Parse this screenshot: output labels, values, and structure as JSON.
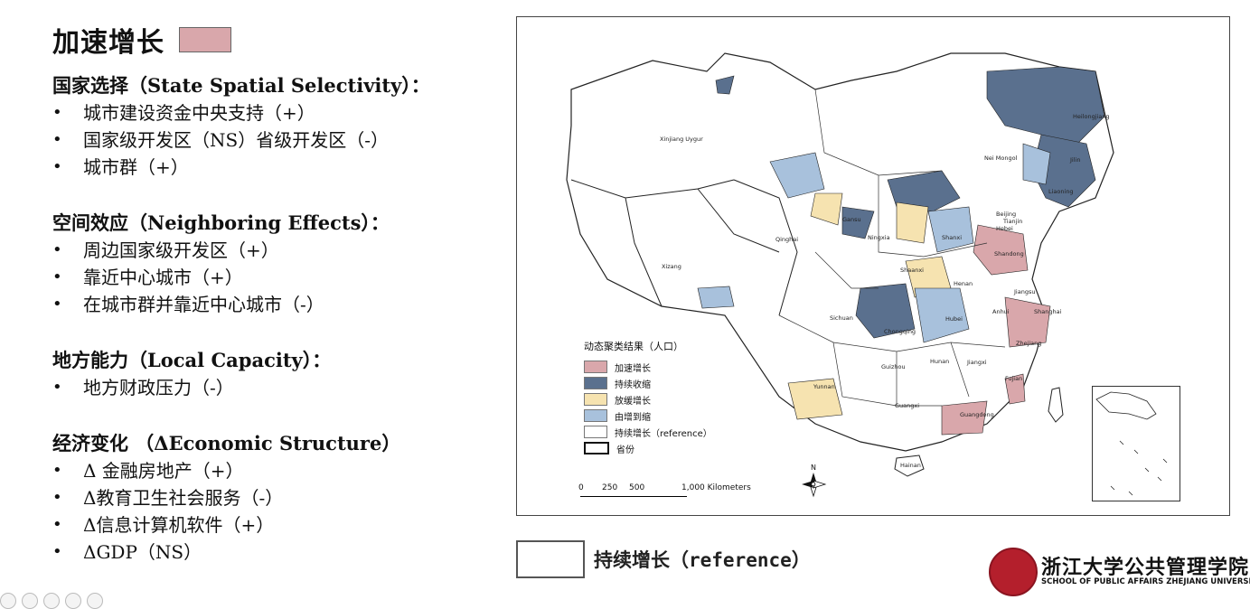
{
  "title": "加速增长",
  "colors": {
    "accelerating": "#d9a7ab",
    "shrinking": "#5a708e",
    "slowing": "#f6e3b0",
    "grow_to_shrink": "#a8c1dc",
    "reference": "#ffffff"
  },
  "sections": [
    {
      "heading": "国家选择（State Spatial Selectivity）：",
      "items": [
        "城市建设资金中央支持（+）",
        "国家级开发区（NS）省级开发区（-）",
        "城市群（+）"
      ]
    },
    {
      "heading": "空间效应（Neighboring Effects）：",
      "items": [
        "周边国家级开发区（+）",
        "靠近中心城市（+）",
        "在城市群并靠近中心城市（-）"
      ]
    },
    {
      "heading": "地方能力（Local Capacity）：",
      "items": [
        "地方财政压力（-）"
      ]
    },
    {
      "heading": "经济变化 （ΔEconomic Structure）",
      "items": [
        "Δ 金融房地产（+）",
        "Δ教育卫生社会服务（-）",
        "Δ信息计算机软件（+）",
        "ΔGDP（NS）"
      ]
    }
  ],
  "map": {
    "legend_title": "动态聚类结果（人口）",
    "legend_items": [
      "加速增长",
      "持续收缩",
      "放缓增长",
      "由增到缩",
      "持续增长（reference）",
      "省份"
    ],
    "scale_labels": [
      "0",
      "250",
      "500",
      "1,000 Kilometers"
    ],
    "north": "N",
    "province_labels": [
      "Xinjiang Uygur",
      "Xizang",
      "Qinghai",
      "Nei Mongol",
      "Heilongjiang",
      "Jilin",
      "Liaoning",
      "Hebei",
      "Beijing",
      "Tianjin",
      "Shanxi",
      "Shandong",
      "Gansu",
      "Ningxia",
      "Shaanxi",
      "Henan",
      "Jiangsu",
      "Anhui",
      "Shanghai",
      "Hubei",
      "Sichuan",
      "Chongqing",
      "Zhejiang",
      "Hunan",
      "Jiangxi",
      "Guizhou",
      "Yunnan",
      "Guangxi",
      "Guangdong",
      "Fujian",
      "Hainan"
    ]
  },
  "reference_label": "持续增长（reference）",
  "logo": {
    "cn": "浙江大学公共管理学院",
    "en": "SCHOOL OF PUBLIC AFFAIRS ZHEJIANG UNIVERSITY"
  }
}
